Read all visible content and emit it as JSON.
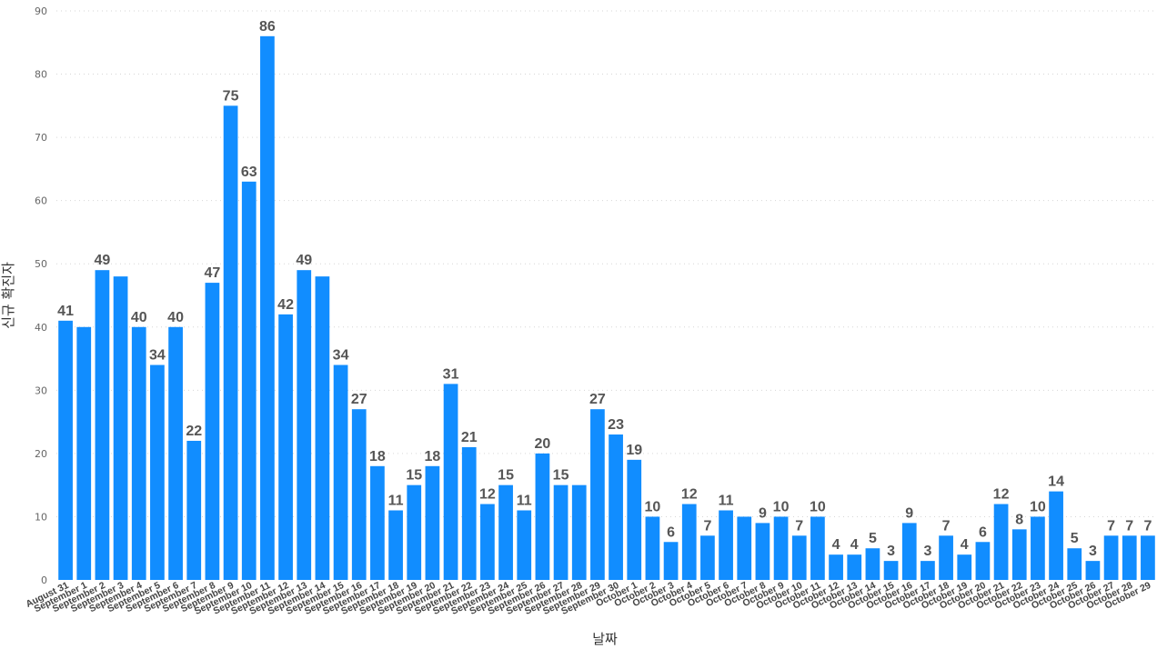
{
  "chart_data": {
    "type": "bar",
    "title": "",
    "xlabel": "날짜",
    "ylabel": "신규 확진자",
    "ylim": [
      0,
      90
    ],
    "yticks": [
      0,
      10,
      20,
      30,
      40,
      50,
      60,
      70,
      80,
      90
    ],
    "grid": true,
    "bar_color": "#118dff",
    "data_labels_shown": true,
    "categories": [
      "August 31",
      "September 1",
      "September 2",
      "September 3",
      "September 4",
      "September 5",
      "September 6",
      "September 7",
      "September 8",
      "September 9",
      "September 10",
      "September 11",
      "September 12",
      "September 13",
      "September 14",
      "September 15",
      "September 16",
      "September 17",
      "September 18",
      "September 19",
      "September 20",
      "September 21",
      "September 22",
      "September 23",
      "September 24",
      "September 25",
      "September 26",
      "September 27",
      "September 28",
      "September 29",
      "September 30",
      "October 1",
      "October 2",
      "October 3",
      "October 4",
      "October 5",
      "October 6",
      "October 7",
      "October 8",
      "October 9",
      "October 10",
      "October 11",
      "October 12",
      "October 13",
      "October 14",
      "October 15",
      "October 16",
      "October 17",
      "October 18",
      "October 19",
      "October 20",
      "October 21",
      "October 22",
      "October 23",
      "October 24",
      "October 25",
      "October 26",
      "October 27",
      "October 28",
      "October 29"
    ],
    "values": [
      41,
      40,
      49,
      48,
      40,
      34,
      40,
      22,
      47,
      75,
      63,
      86,
      42,
      49,
      48,
      34,
      27,
      18,
      11,
      15,
      18,
      31,
      21,
      12,
      15,
      11,
      20,
      15,
      15,
      27,
      23,
      19,
      10,
      6,
      12,
      7,
      11,
      10,
      9,
      10,
      7,
      10,
      4,
      4,
      5,
      3,
      9,
      3,
      7,
      4,
      6,
      12,
      8,
      10,
      14,
      5,
      3,
      7,
      7,
      7
    ],
    "labeled_values": [
      41,
      null,
      49,
      null,
      40,
      34,
      40,
      22,
      47,
      75,
      63,
      86,
      42,
      49,
      null,
      34,
      27,
      18,
      11,
      15,
      18,
      31,
      21,
      12,
      15,
      11,
      20,
      15,
      null,
      27,
      23,
      19,
      10,
      6,
      12,
      7,
      11,
      null,
      9,
      10,
      7,
      10,
      4,
      4,
      5,
      3,
      9,
      3,
      7,
      4,
      6,
      12,
      8,
      10,
      14,
      5,
      3,
      7,
      7,
      7
    ]
  }
}
